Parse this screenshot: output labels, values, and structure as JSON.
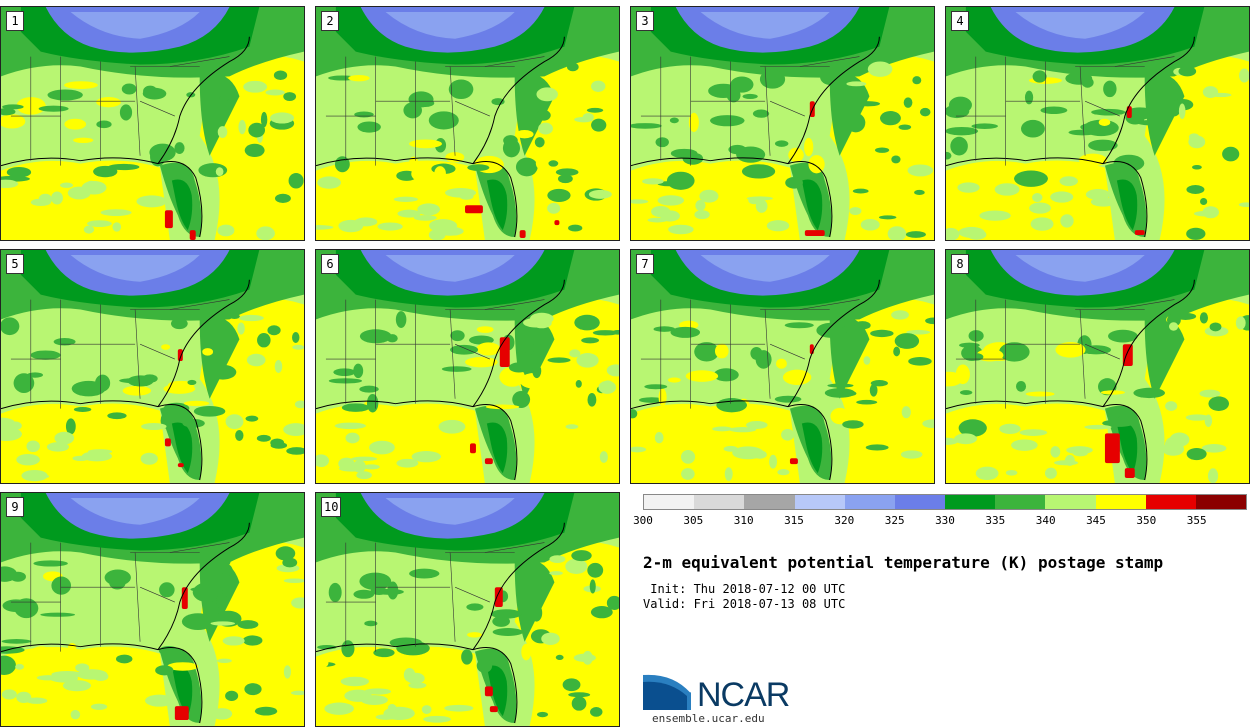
{
  "figure": {
    "title": "2-m equivalent potential temperature (K) postage stamp",
    "init_line": " Init: Thu 2018-07-12 00 UTC",
    "valid_line": "Valid: Fri 2018-07-13 08 UTC"
  },
  "members": [
    {
      "label": "1"
    },
    {
      "label": "2"
    },
    {
      "label": "3"
    },
    {
      "label": "4"
    },
    {
      "label": "5"
    },
    {
      "label": "6"
    },
    {
      "label": "7"
    },
    {
      "label": "8"
    },
    {
      "label": "9"
    },
    {
      "label": "10"
    }
  ],
  "colorbar": {
    "ticks": [
      "300",
      "305",
      "310",
      "315",
      "320",
      "325",
      "330",
      "335",
      "340",
      "345",
      "350",
      "355"
    ],
    "colors": [
      "#f2f2f2",
      "#d9d9d9",
      "#a6a6a6",
      "#b7c8f8",
      "#8aa2f0",
      "#6b7ee8",
      "#009a1e",
      "#3cb43c",
      "#b8f672",
      "#ffff00",
      "#e60000",
      "#8b0000"
    ]
  },
  "logo": {
    "name": "NCAR",
    "url": "ensemble.ucar.edu"
  }
}
